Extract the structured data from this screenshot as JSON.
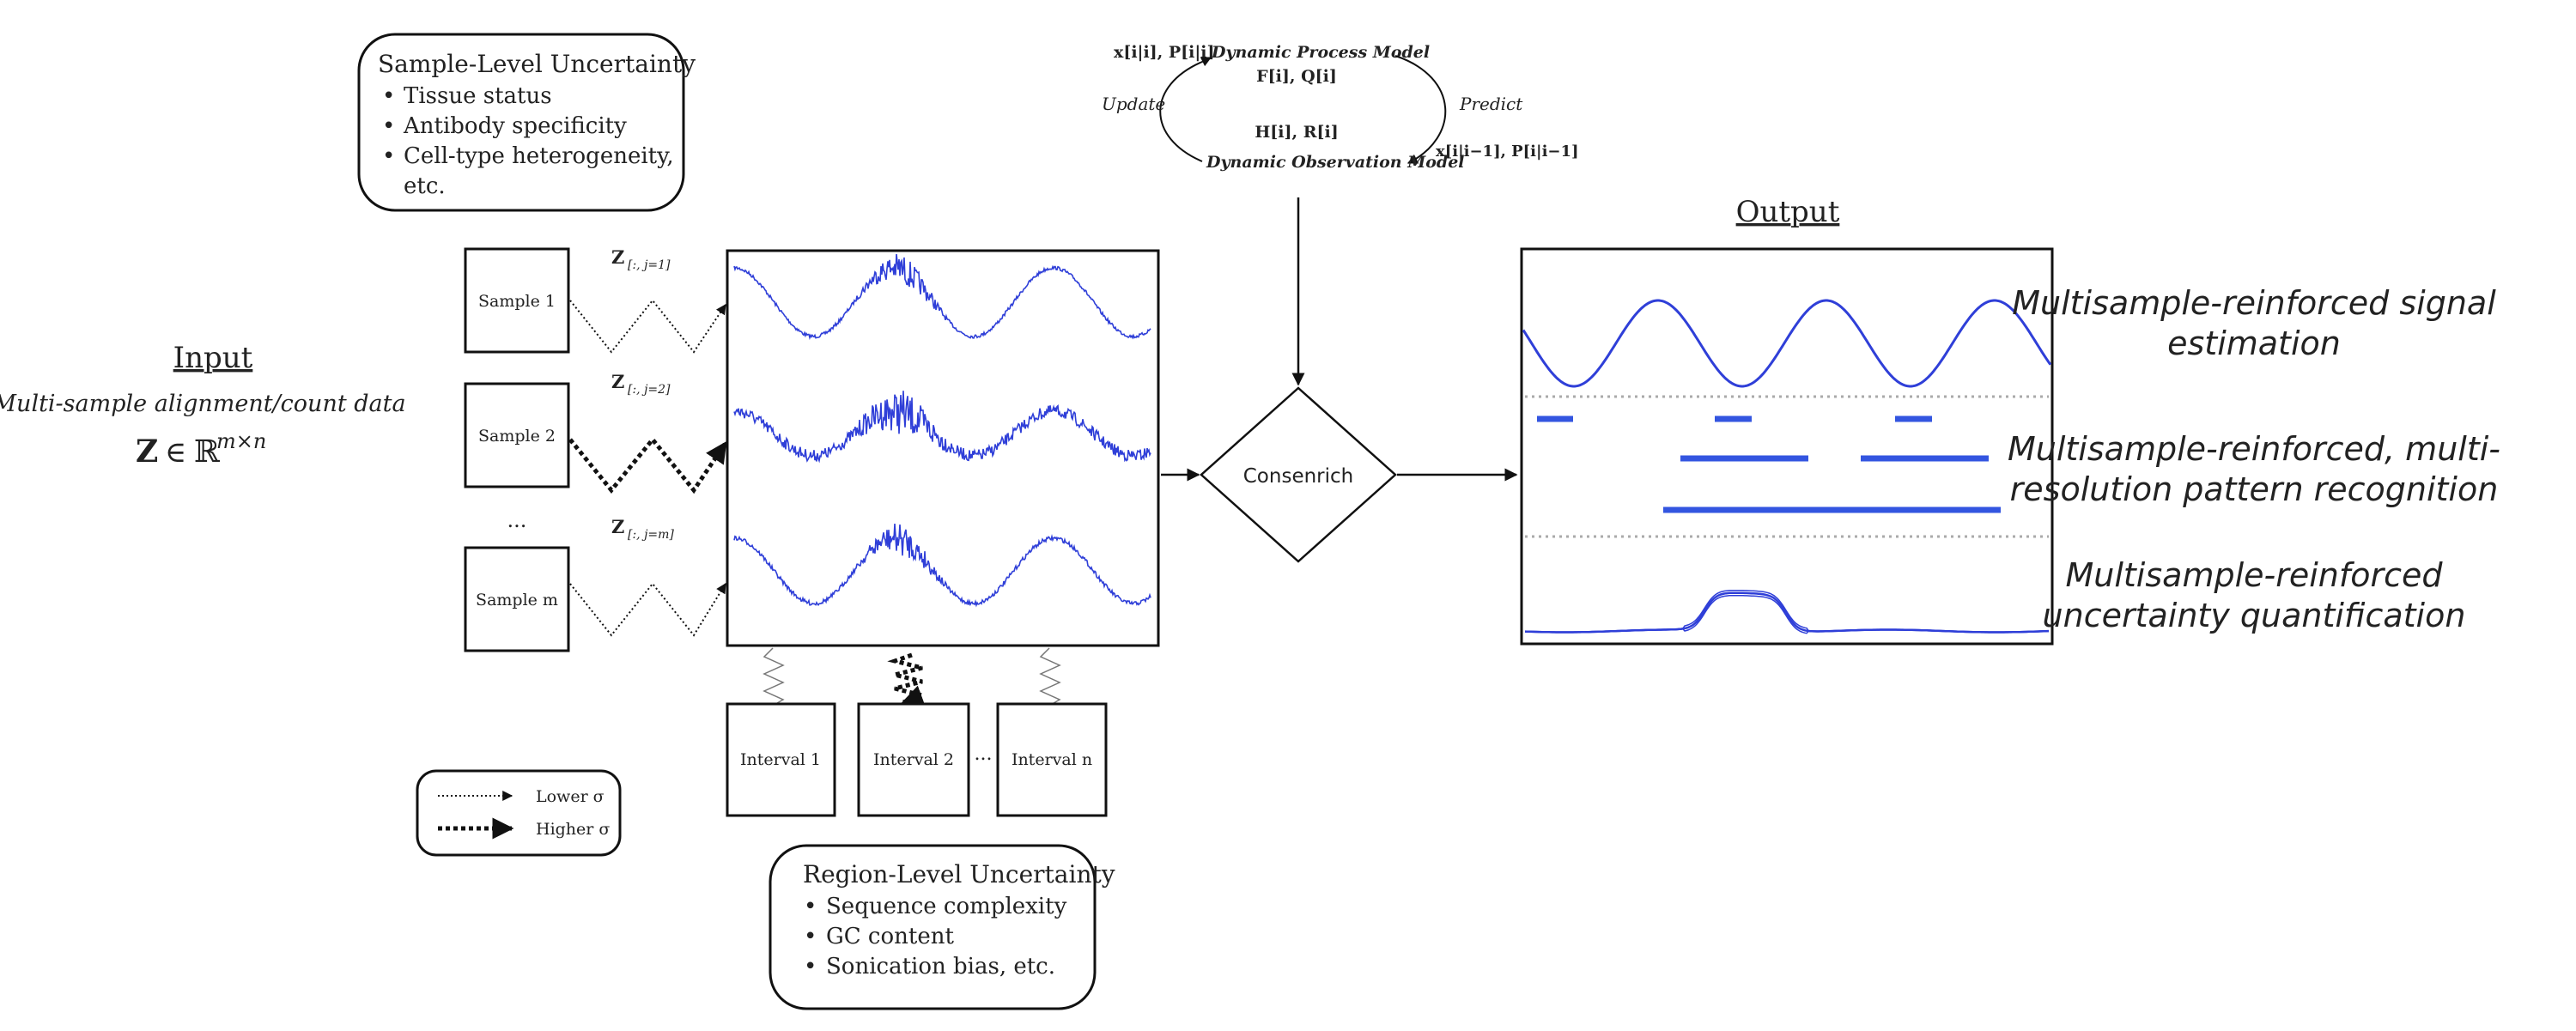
{
  "sample_level": {
    "title": "Sample-Level Uncertainty",
    "items": [
      "Tissue status",
      "Antibody specificity",
      "Cell-type heterogeneity,",
      "etc."
    ]
  },
  "region_level": {
    "title": "Region-Level Uncertainty",
    "items": [
      "Sequence complexity",
      "GC content",
      "Sonication bias, etc."
    ]
  },
  "input": {
    "heading": "Input",
    "subtitle": "Multi-sample alignment/count data",
    "Z": "Z",
    "in": "∈",
    "R": "ℝ",
    "dims": "m×n"
  },
  "samples": [
    {
      "label": "Sample 1",
      "z_base": "Z",
      "z_sub": "[:, j=1]",
      "noise": "low"
    },
    {
      "label": "Sample 2",
      "z_base": "Z",
      "z_sub": "[:, j=2]",
      "noise": "high"
    },
    {
      "label": "Sample m",
      "z_base": "Z",
      "z_sub": "[:, j=m]",
      "noise": "low"
    }
  ],
  "samples_ellipsis": "...",
  "intervals": [
    "Interval 1",
    "Interval 2",
    "Interval n"
  ],
  "intervals_ellipsis": "...",
  "legend": {
    "lower": "Lower σ",
    "higher": "Higher σ"
  },
  "consenrich": "Consenrich",
  "model": {
    "process": "Dynamic Process Model",
    "process_params": "F[i], Q[i]",
    "observation": "Dynamic Observation Model",
    "observation_params": "H[i], R[i]",
    "state_filtered": "x[i|i], P[i|i]",
    "state_predicted": "x[i|i−1], P[i|i−1]",
    "update": "Update",
    "predict": "Predict"
  },
  "output": {
    "heading": "Output",
    "captions": [
      [
        "Multisample-reinforced signal",
        "estimation"
      ],
      [
        "Multisample-reinforced, multi-",
        "resolution pattern recognition"
      ],
      [
        "Multisample-reinforced",
        "uncertainty quantification"
      ]
    ]
  },
  "colors": {
    "signal": "#2f3fd8",
    "segment": "#3355e0",
    "ink": "#111111",
    "dotted": "#aaaaaa"
  }
}
